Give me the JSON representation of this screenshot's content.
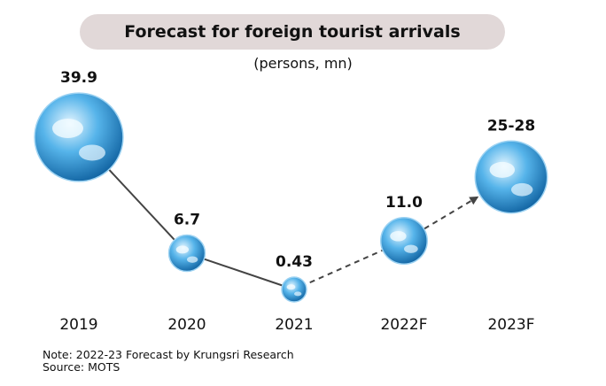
{
  "chart_data": {
    "type": "scatter",
    "title": "Forecast for foreign tourist arrivals",
    "subtitle": "(persons, mn)",
    "categories": [
      "2019",
      "2020",
      "2021",
      "2022F",
      "2023F"
    ],
    "values": [
      39.9,
      6.7,
      0.43,
      11.0,
      26.5
    ],
    "value_labels": [
      "39.9",
      "6.7",
      "0.43",
      "11.0",
      "25-28"
    ],
    "actual_count": 3,
    "forecast_line": "dashed",
    "colors": {
      "line": "#444444",
      "globe": "#2f8fd0",
      "title_bg": "#e1d8d8"
    }
  },
  "footer": {
    "note": "Note: 2022-23 Forecast by Krungsri Research",
    "source": "Source:  MOTS"
  }
}
